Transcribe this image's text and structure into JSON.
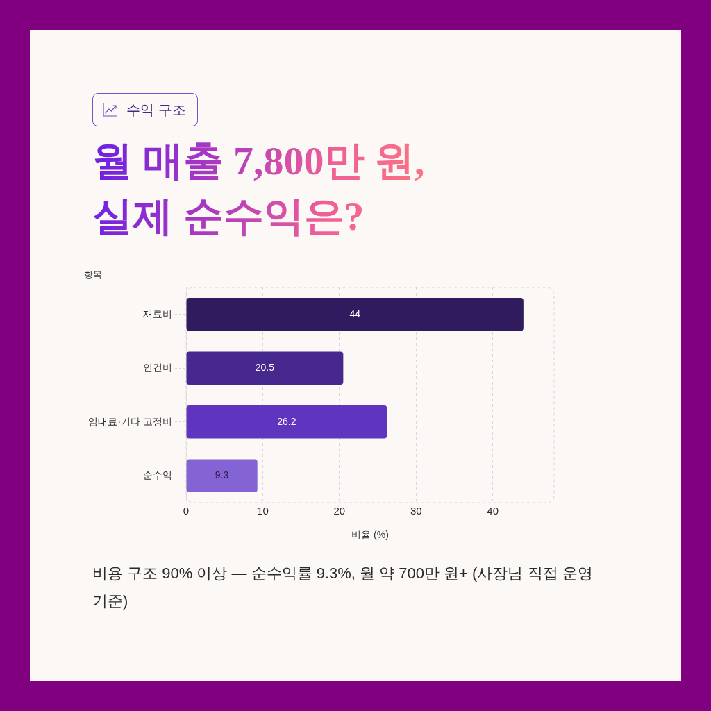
{
  "chart_data": {
    "type": "bar",
    "orientation": "horizontal",
    "subtitle": "수익 구조",
    "title": "월 매출 7,800만 원,\n실제 순수익은?",
    "ylabel": "항목",
    "xlabel": "비율 (%)",
    "categories": [
      "재료비",
      "인건비",
      "임대료·기타 고정비",
      "순수익"
    ],
    "values": [
      44,
      20.5,
      26.2,
      9.3
    ],
    "colors": [
      "#2f1b5e",
      "#47288e",
      "#5f35bf",
      "#8463d4"
    ],
    "xlim": [
      0,
      48
    ],
    "xticks": [
      0,
      10,
      20,
      30,
      40
    ],
    "grid": "x",
    "data_labels": true,
    "annotations": [
      "비용 구조 90% 이상 — 순수익률 9.3%, 월 약 700만 원+ (사장님 직접 운영 기준)"
    ]
  }
}
